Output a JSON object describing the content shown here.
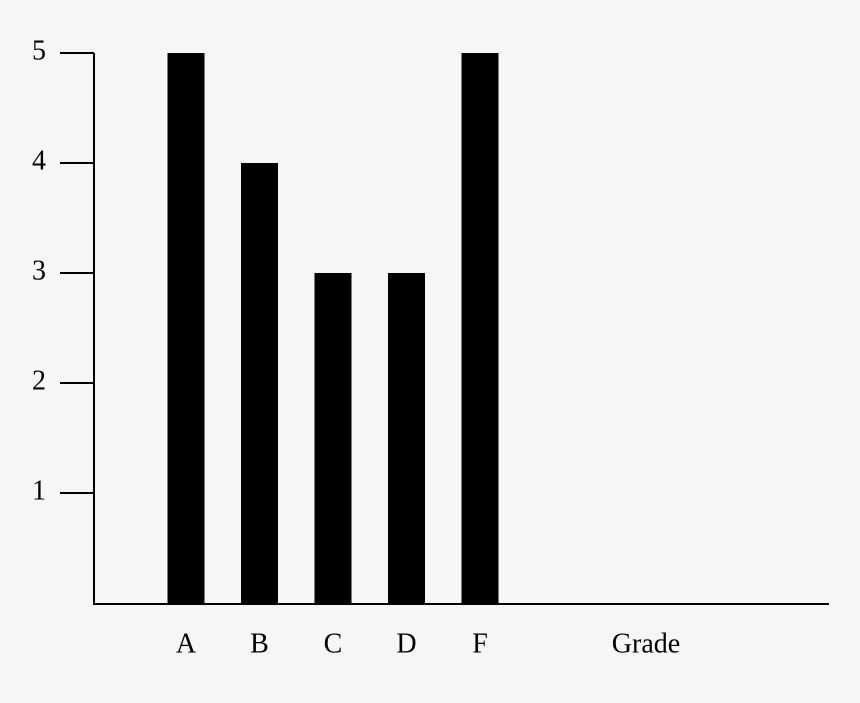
{
  "chart_data": {
    "type": "bar",
    "x_label": "Grade",
    "categories": [
      "A",
      "B",
      "C",
      "D",
      "F"
    ],
    "values": [
      5,
      4,
      3,
      3,
      5
    ],
    "color": "#000000",
    "ylim": [
      0,
      5
    ],
    "yticks": [
      1,
      2,
      3,
      4,
      5
    ],
    "grid": false
  }
}
